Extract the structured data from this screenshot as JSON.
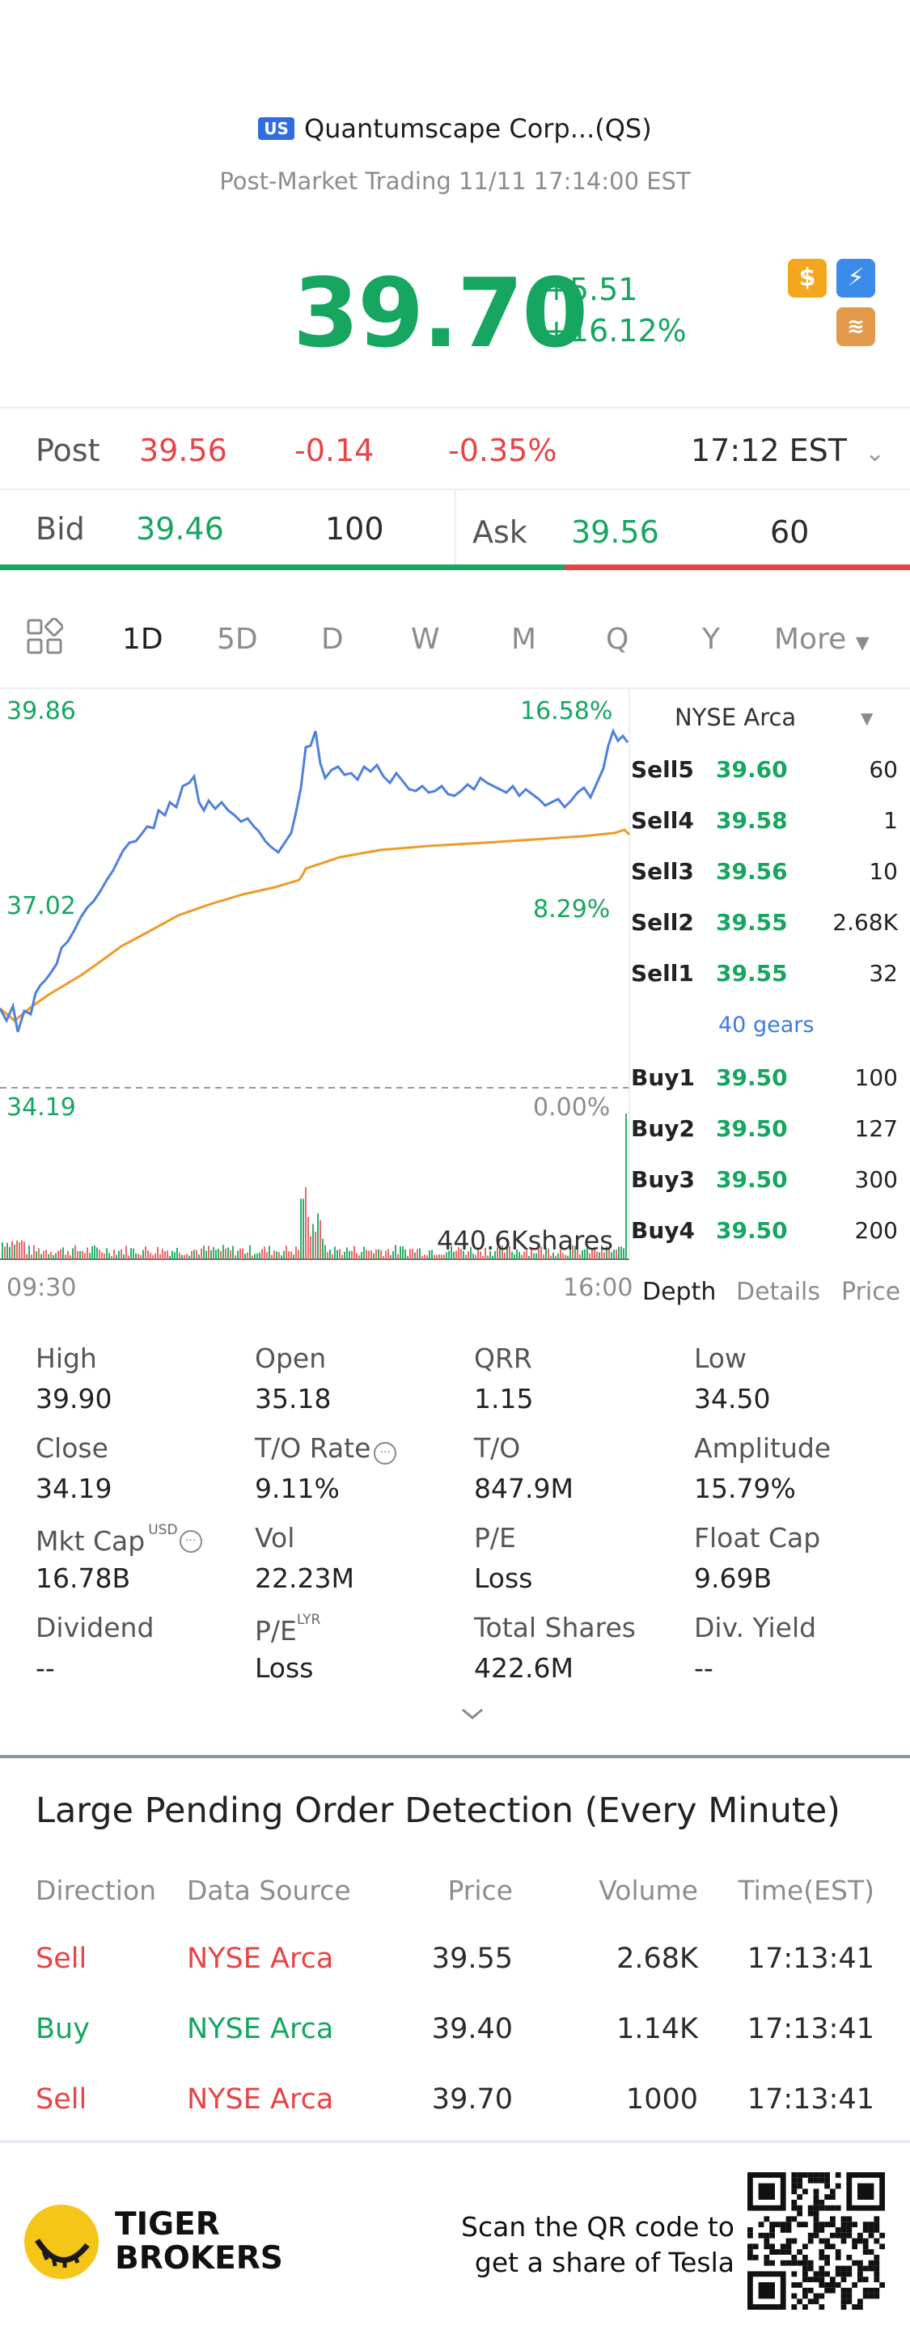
{
  "header": {
    "market_badge": "US",
    "title": "Quantumscape Corp...(QS)",
    "subtitle": "Post-Market Trading 11/11 17:14:00 EST"
  },
  "quote": {
    "price": "39.70",
    "change": "+5.51",
    "change_pct": "+16.12%",
    "color": "#16a660"
  },
  "post": {
    "label": "Post",
    "price": "39.56",
    "change": "-0.14",
    "change_pct": "-0.35%",
    "time": "17:12 EST"
  },
  "bidask": {
    "bid_label": "Bid",
    "bid_price": "39.46",
    "bid_qty": "100",
    "ask_label": "Ask",
    "ask_price": "39.56",
    "ask_qty": "60",
    "bid_ratio": 0.62
  },
  "tabs": [
    "1D",
    "5D",
    "D",
    "W",
    "M",
    "Q",
    "Y",
    "More"
  ],
  "chart": {
    "price_high": "39.86",
    "price_mid": "37.02",
    "price_low": "34.19",
    "pct_high": "16.58%",
    "pct_mid": "8.29%",
    "pct_low": "0.00%",
    "volume_label": "440.6Kshares",
    "time_start": "09:30",
    "time_end": "16:00"
  },
  "orderbook": {
    "exchange": "NYSE Arca",
    "sells": [
      {
        "label": "Sell5",
        "price": "39.60",
        "qty": "60"
      },
      {
        "label": "Sell4",
        "price": "39.58",
        "qty": "1"
      },
      {
        "label": "Sell3",
        "price": "39.56",
        "qty": "10"
      },
      {
        "label": "Sell2",
        "price": "39.55",
        "qty": "2.68K"
      },
      {
        "label": "Sell1",
        "price": "39.55",
        "qty": "32"
      }
    ],
    "gears": "40 gears",
    "buys": [
      {
        "label": "Buy1",
        "price": "39.50",
        "qty": "100"
      },
      {
        "label": "Buy2",
        "price": "39.50",
        "qty": "127"
      },
      {
        "label": "Buy3",
        "price": "39.50",
        "qty": "300"
      },
      {
        "label": "Buy4",
        "price": "39.50",
        "qty": "200"
      }
    ],
    "tabs": [
      "Depth",
      "Details",
      "Price"
    ]
  },
  "stats": [
    {
      "label": "High",
      "value": "39.90"
    },
    {
      "label": "Open",
      "value": "35.18"
    },
    {
      "label": "QRR",
      "value": "1.15"
    },
    {
      "label": "Low",
      "value": "34.50"
    },
    {
      "label": "Close",
      "value": "34.19"
    },
    {
      "label": "T/O Rate",
      "value": "9.11%"
    },
    {
      "label": "T/O",
      "value": "847.9M"
    },
    {
      "label": "Amplitude",
      "value": "15.79%"
    },
    {
      "label": "Mkt Cap",
      "value": "16.78B",
      "sup": "USD"
    },
    {
      "label": "Vol",
      "value": "22.23M"
    },
    {
      "label": "P/E",
      "value": "Loss"
    },
    {
      "label": "Float Cap",
      "value": "9.69B"
    },
    {
      "label": "Dividend",
      "value": "--"
    },
    {
      "label": "P/E",
      "value": "Loss",
      "sup": "LYR"
    },
    {
      "label": "Total Shares",
      "value": "422.6M"
    },
    {
      "label": "Div. Yield",
      "value": "--"
    }
  ],
  "large_orders": {
    "title": "Large Pending Order Detection (Every Minute)",
    "headers": [
      "Direction",
      "Data Source",
      "Price",
      "Volume",
      "Time(EST)"
    ],
    "rows": [
      {
        "direction": "Sell",
        "source": "NYSE Arca",
        "price": "39.55",
        "volume": "2.68K",
        "time": "17:13:41"
      },
      {
        "direction": "Buy",
        "source": "NYSE Arca",
        "price": "39.40",
        "volume": "1.14K",
        "time": "17:13:41"
      },
      {
        "direction": "Sell",
        "source": "NYSE Arca",
        "price": "39.70",
        "volume": "1000",
        "time": "17:13:41"
      }
    ]
  },
  "footer": {
    "brand_line1": "TIGER",
    "brand_line2": "BROKERS",
    "promo_line1": "Scan the QR code to",
    "promo_line2": "get a share of Tesla"
  }
}
